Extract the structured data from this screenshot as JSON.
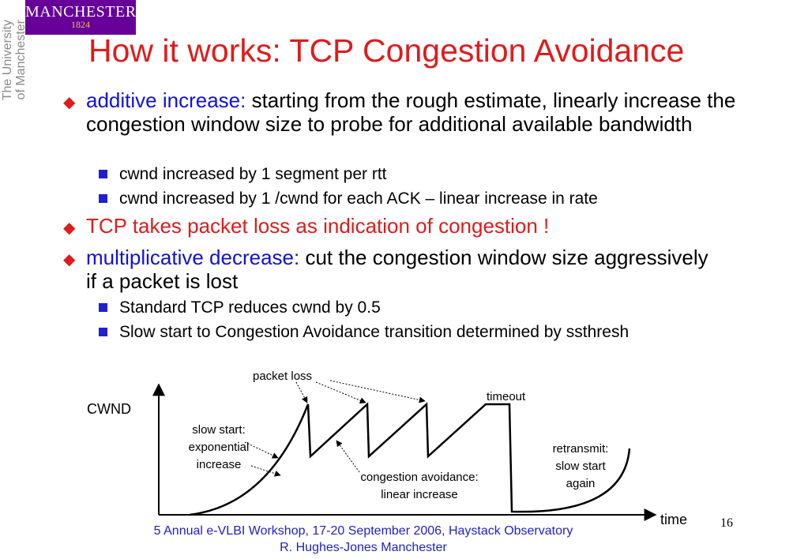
{
  "branding": {
    "logo_line1": "MANCHESTER",
    "logo_line2": "1824",
    "university_text_line1": "The University",
    "university_text_line2": "of Manchester"
  },
  "title": "How it works: TCP Congestion Avoidance",
  "bullets": [
    {
      "lead": "additive increase:",
      "text": " starting from the rough estimate, linearly increase the congestion window size to probe for additional available bandwidth"
    },
    {
      "sub": "cwnd increased by 1 segment per rtt"
    },
    {
      "sub": "cwnd increased by 1 /cwnd for each ACK – linear increase in rate"
    },
    {
      "text": "TCP takes packet loss as indication of congestion !"
    },
    {
      "lead": "multiplicative decrease:",
      "text": " cut the congestion window size aggressively if a packet is lost"
    },
    {
      "sub": "Standard TCP reduces cwnd by 0.5"
    },
    {
      "sub": "Slow start to Congestion Avoidance transition determined by ssthresh"
    }
  ],
  "diagram": {
    "y_label": "CWND",
    "x_label": "time",
    "packet_loss_label": "packet loss",
    "timeout_label": "timeout",
    "slow_start_label": [
      "slow start:",
      "exponential",
      "increase"
    ],
    "congestion_avoidance_label": [
      "congestion avoidance:",
      "linear increase"
    ],
    "retransmit_label": [
      "retransmit:",
      "slow start",
      "again"
    ]
  },
  "footer": {
    "line1": "5 Annual e-VLBI Workshop, 17-20 September 2006, Haystack Observatory",
    "line2": "R. Hughes-Jones  Manchester"
  },
  "page_number": "16",
  "colors": {
    "title": "#e01b1b",
    "accent_blue": "#1111dd",
    "logo_bg": "#660099",
    "logo_year": "#f2c14e",
    "footer": "#2020d0"
  }
}
